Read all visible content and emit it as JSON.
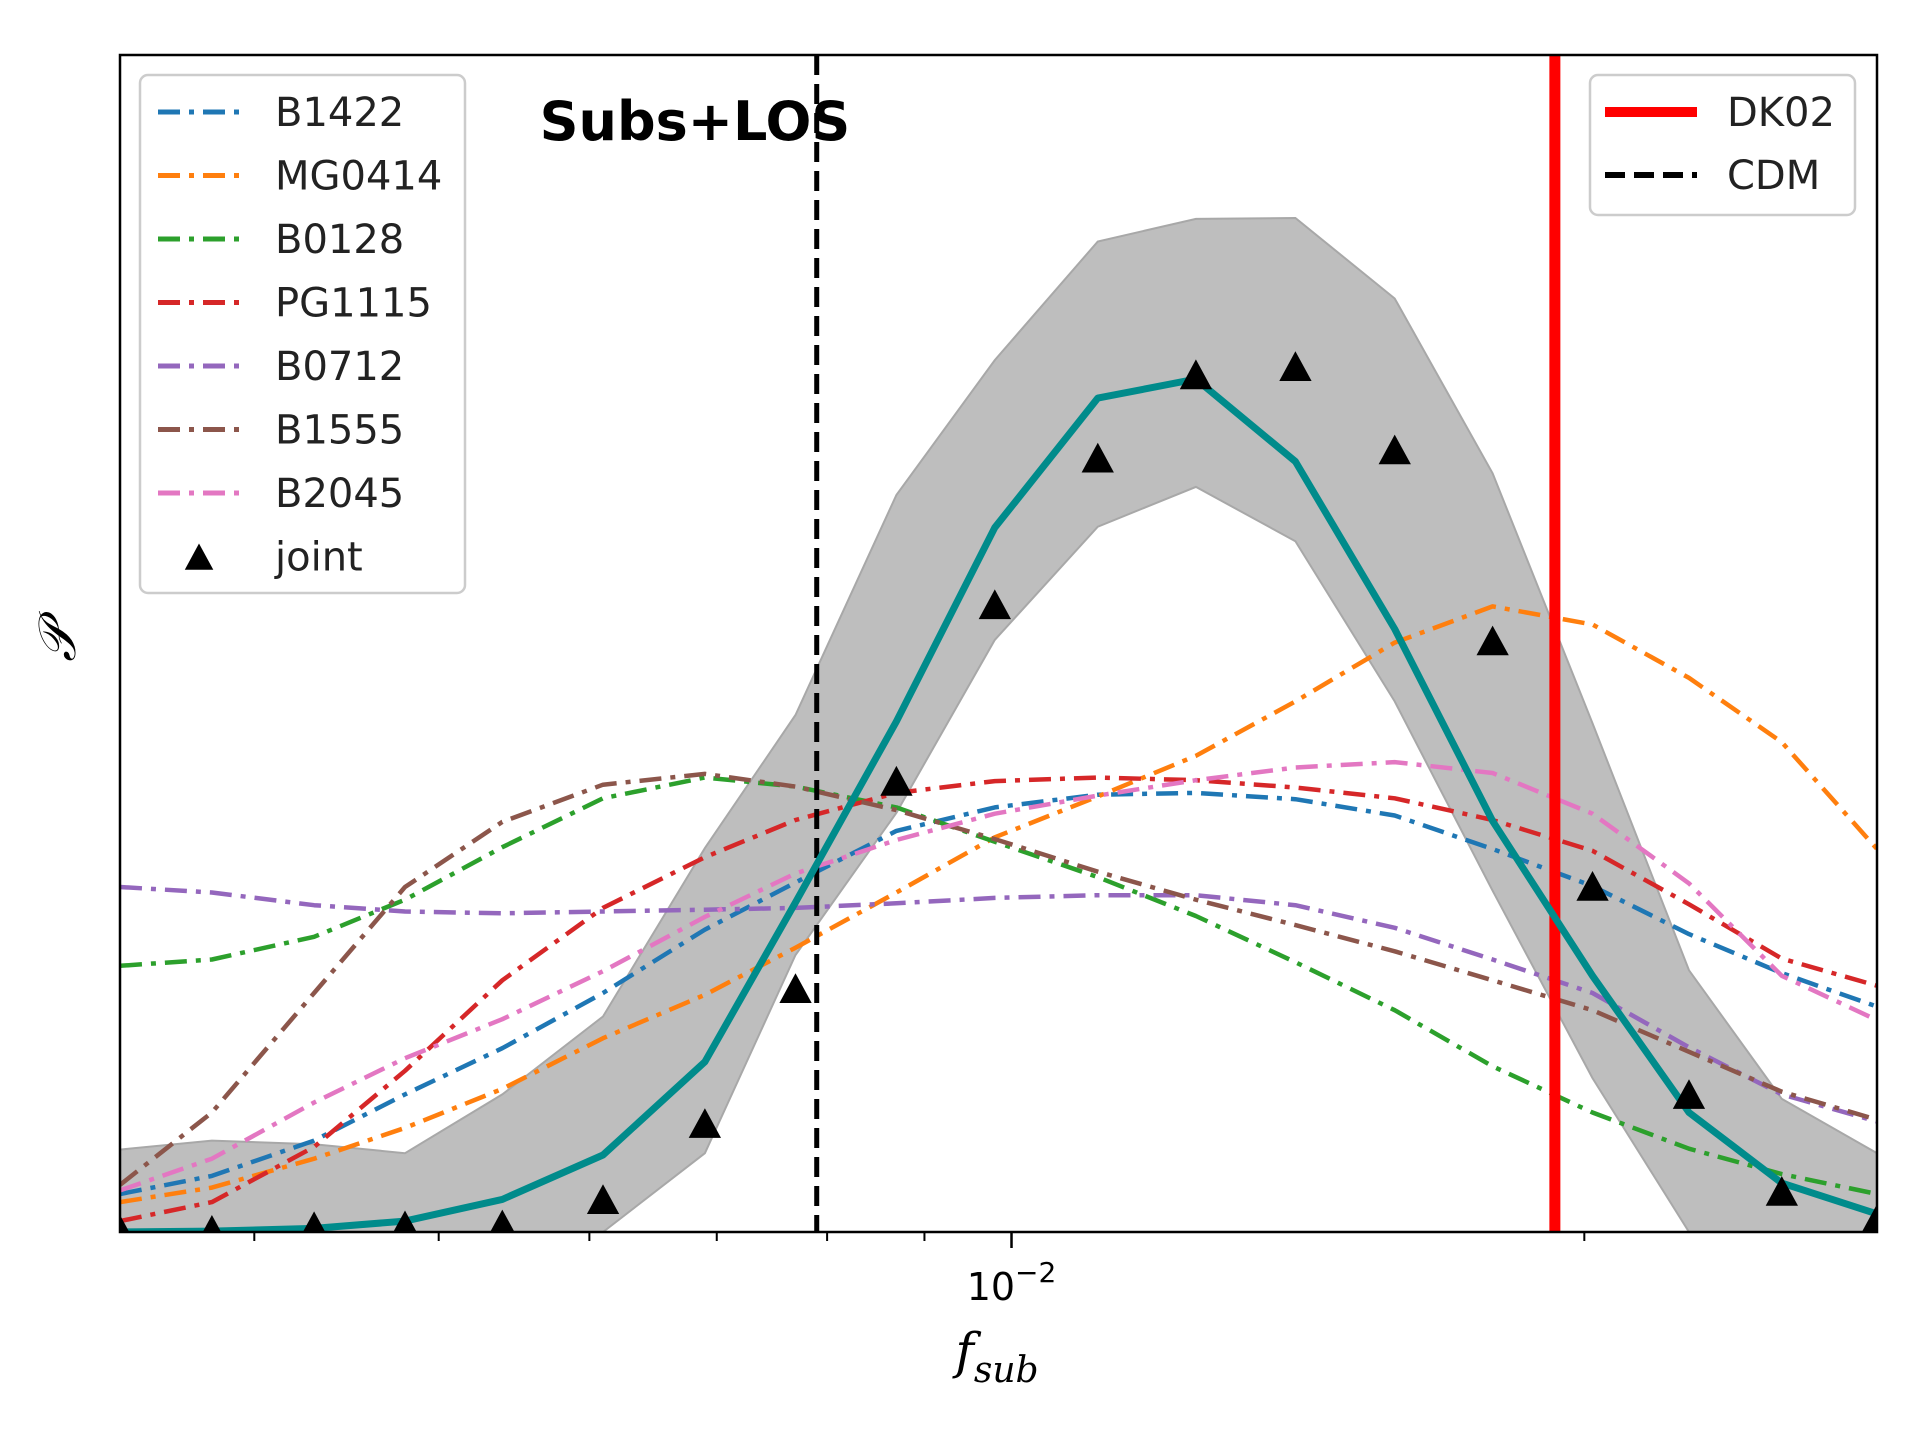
{
  "chart_data": {
    "type": "line",
    "annotation": "Subs+LOS",
    "xlabel": "f",
    "xlabel_sub": "sub",
    "ylabel": "𝒫",
    "x_scale": "log",
    "xlim": [
      0.0034,
      0.0285
    ],
    "ylim": [
      0,
      1.3
    ],
    "x_major_ticks": [
      {
        "value": 0.01,
        "base": "10",
        "exp": "−2"
      }
    ],
    "x_minor_ticks": [
      0.004,
      0.005,
      0.006,
      0.007,
      0.008,
      0.009,
      0.02
    ],
    "grid": false,
    "y_ticks_shown": false,
    "x": [
      0.0034,
      0.0038,
      0.0043,
      0.0048,
      0.0054,
      0.0061,
      0.0069,
      0.0077,
      0.0087,
      0.0098,
      0.0111,
      0.0125,
      0.0141,
      0.0159,
      0.0179,
      0.0202,
      0.0227,
      0.0254,
      0.0285
    ],
    "series": [
      {
        "name": "B1422",
        "color": "#1f77b4",
        "style": "dashdot",
        "values": [
          0.042,
          0.062,
          0.101,
          0.152,
          0.203,
          0.264,
          0.334,
          0.386,
          0.443,
          0.469,
          0.483,
          0.485,
          0.478,
          0.46,
          0.423,
          0.382,
          0.329,
          0.286,
          0.249
        ]
      },
      {
        "name": "MG0414",
        "color": "#ff7f0e",
        "style": "dashdot",
        "values": [
          0.033,
          0.049,
          0.081,
          0.115,
          0.158,
          0.214,
          0.262,
          0.314,
          0.375,
          0.436,
          0.481,
          0.526,
          0.586,
          0.651,
          0.691,
          0.671,
          0.612,
          0.541,
          0.423
        ]
      },
      {
        "name": "B0128",
        "color": "#2ca02c",
        "style": "dashdot",
        "values": [
          0.294,
          0.301,
          0.326,
          0.367,
          0.425,
          0.479,
          0.502,
          0.492,
          0.469,
          0.431,
          0.392,
          0.349,
          0.298,
          0.245,
          0.183,
          0.132,
          0.092,
          0.064,
          0.042
        ]
      },
      {
        "name": "PG1115",
        "color": "#d62728",
        "style": "dashdot",
        "values": [
          0.012,
          0.033,
          0.094,
          0.178,
          0.278,
          0.358,
          0.414,
          0.455,
          0.485,
          0.498,
          0.502,
          0.499,
          0.491,
          0.479,
          0.455,
          0.421,
          0.362,
          0.302,
          0.272
        ]
      },
      {
        "name": "B0712",
        "color": "#9467bd",
        "style": "dashdot",
        "values": [
          0.381,
          0.375,
          0.361,
          0.354,
          0.352,
          0.354,
          0.356,
          0.358,
          0.363,
          0.369,
          0.372,
          0.372,
          0.361,
          0.336,
          0.301,
          0.264,
          0.204,
          0.152,
          0.122
        ]
      },
      {
        "name": "B1555",
        "color": "#8c564b",
        "style": "dashdot",
        "values": [
          0.052,
          0.132,
          0.264,
          0.381,
          0.453,
          0.494,
          0.506,
          0.492,
          0.466,
          0.434,
          0.398,
          0.367,
          0.339,
          0.31,
          0.278,
          0.245,
          0.199,
          0.155,
          0.124
        ]
      },
      {
        "name": "B2045",
        "color": "#e377c2",
        "style": "dashdot",
        "values": [
          0.046,
          0.081,
          0.143,
          0.192,
          0.235,
          0.288,
          0.348,
          0.396,
          0.433,
          0.462,
          0.482,
          0.499,
          0.513,
          0.519,
          0.507,
          0.462,
          0.385,
          0.283,
          0.234
        ]
      }
    ],
    "joint": {
      "name": "joint",
      "marker": "triangle",
      "x": [
        0.0034,
        0.0038,
        0.0043,
        0.0048,
        0.0054,
        0.0061,
        0.0069,
        0.0077,
        0.0087,
        0.0098,
        0.0111,
        0.0125,
        0.0141,
        0.0159,
        0.0179,
        0.0202,
        0.0227,
        0.0254,
        0.0285
      ],
      "values": [
        0.0,
        0.0,
        0.004,
        0.005,
        0.006,
        0.034,
        0.118,
        0.267,
        0.496,
        0.691,
        0.853,
        0.945,
        0.954,
        0.862,
        0.651,
        0.38,
        0.15,
        0.043,
        0.012
      ]
    },
    "fit_curve": {
      "color": "#008b8b",
      "x": [
        0.0034,
        0.0038,
        0.0043,
        0.0048,
        0.0054,
        0.0061,
        0.0069,
        0.0077,
        0.0087,
        0.0098,
        0.0111,
        0.0125,
        0.0141,
        0.0159,
        0.0179,
        0.0202,
        0.0227,
        0.0254,
        0.0285
      ],
      "values": [
        0.0,
        0.001,
        0.004,
        0.012,
        0.036,
        0.085,
        0.188,
        0.364,
        0.564,
        0.778,
        0.921,
        0.942,
        0.851,
        0.666,
        0.454,
        0.283,
        0.132,
        0.054,
        0.02
      ]
    },
    "band": {
      "color": "#bebebe",
      "x": [
        0.0034,
        0.0038,
        0.0043,
        0.0048,
        0.0054,
        0.0061,
        0.0069,
        0.0077,
        0.0087,
        0.0098,
        0.0111,
        0.0125,
        0.0141,
        0.0159,
        0.0179,
        0.0202,
        0.0227,
        0.0254,
        0.0285
      ],
      "upper": [
        0.091,
        0.101,
        0.097,
        0.087,
        0.152,
        0.238,
        0.424,
        0.571,
        0.814,
        0.963,
        1.094,
        1.119,
        1.12,
        1.031,
        0.838,
        0.562,
        0.289,
        0.147,
        0.087
      ],
      "lower": [
        0.0,
        0.0,
        0.0,
        0.0,
        0.0,
        0.0,
        0.087,
        0.306,
        0.463,
        0.654,
        0.779,
        0.823,
        0.763,
        0.586,
        0.377,
        0.17,
        0.0,
        0.0,
        0.0
      ]
    },
    "vlines": [
      {
        "name": "DK02",
        "x": 0.0193,
        "color": "#ff0000",
        "style": "solid"
      },
      {
        "name": "CDM",
        "x": 0.0079,
        "color": "#000000",
        "style": "dashed"
      }
    ],
    "legends": [
      {
        "position": "top-left",
        "entries": [
          "B1422",
          "MG0414",
          "B0128",
          "PG1115",
          "B0712",
          "B1555",
          "B2045",
          "joint"
        ]
      },
      {
        "position": "top-right",
        "entries": [
          "DK02",
          "CDM"
        ]
      }
    ]
  }
}
